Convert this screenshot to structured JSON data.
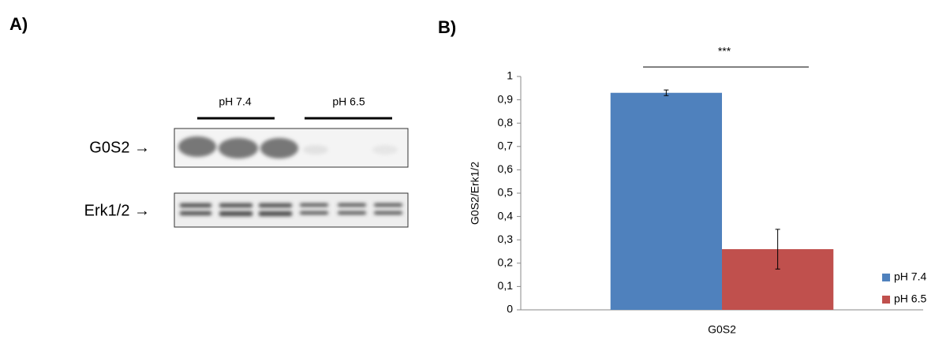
{
  "panel_a": {
    "label": "A)",
    "groups": [
      "pH 7.4",
      "pH 6.5"
    ],
    "rows": [
      "G0S2 →",
      "Erk1/2 →"
    ]
  },
  "chart_data": {
    "type": "bar",
    "panel_label": "B)",
    "y_label": "G0S2/Erk1/2",
    "annotation": "***",
    "categories": [
      "G0S2"
    ],
    "series": [
      {
        "name": "pH 7.4",
        "color": "#4f81bd",
        "values": [
          0.93
        ],
        "errors": [
          0.012
        ]
      },
      {
        "name": "pH 6.5",
        "color": "#c0504d",
        "values": [
          0.26
        ],
        "errors": [
          0.085
        ]
      }
    ],
    "ylim": [
      0,
      1
    ],
    "yticks": [
      0,
      {
        "value": 0.1,
        "label": "0,1"
      },
      {
        "value": 0.2,
        "label": "0,2"
      },
      {
        "value": 0.3,
        "label": "0,3"
      },
      {
        "value": 0.4,
        "label": "0,4"
      },
      {
        "value": 0.5,
        "label": "0,5"
      },
      {
        "value": 0.6,
        "label": "0,6"
      },
      {
        "value": 0.7,
        "label": "0,7"
      },
      {
        "value": 0.8,
        "label": "0,8"
      },
      {
        "value": 0.9,
        "label": "0,9"
      },
      1
    ],
    "legend": "right",
    "grid": false
  }
}
